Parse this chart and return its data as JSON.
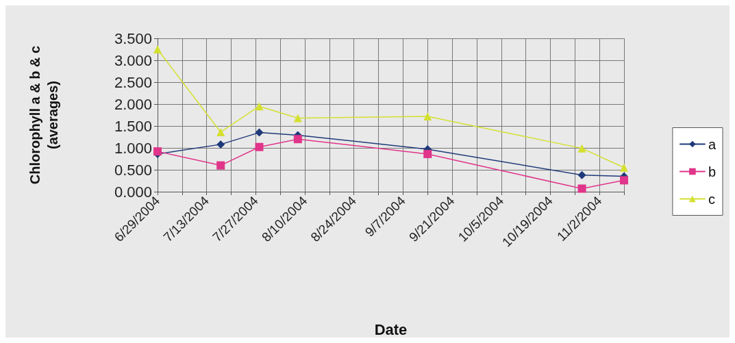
{
  "chart_data": {
    "type": "line",
    "xlabel": "Date",
    "ylabel": "Chlorophyll a & b & c\n(averages)",
    "x": [
      "2004-06-29",
      "2004-07-17",
      "2004-07-28",
      "2004-08-08",
      "2004-09-14",
      "2004-10-28",
      "2004-11-09"
    ],
    "series": [
      {
        "name": "a",
        "color": "#1f3a7a",
        "marker": "diamond",
        "values": [
          0.86,
          1.08,
          1.35,
          1.29,
          0.97,
          0.38,
          0.35
        ]
      },
      {
        "name": "b",
        "color": "#e0358a",
        "marker": "square",
        "values": [
          0.92,
          0.6,
          1.02,
          1.2,
          0.86,
          0.07,
          0.26
        ]
      },
      {
        "name": "c",
        "color": "#d4e030",
        "marker": "triangle",
        "values": [
          3.25,
          1.36,
          1.95,
          1.68,
          1.72,
          0.99,
          0.55
        ]
      }
    ],
    "xlim": [
      "2004-06-29",
      "2004-11-09"
    ],
    "xticks": [
      {
        "value": "2004-06-29",
        "label": "6/29/2004"
      },
      {
        "value": "2004-07-06",
        "label": null
      },
      {
        "value": "2004-07-13",
        "label": "7/13/2004"
      },
      {
        "value": "2004-07-20",
        "label": null
      },
      {
        "value": "2004-07-27",
        "label": "7/27/2004"
      },
      {
        "value": "2004-08-03",
        "label": null
      },
      {
        "value": "2004-08-10",
        "label": "8/10/2004"
      },
      {
        "value": "2004-08-17",
        "label": null
      },
      {
        "value": "2004-08-24",
        "label": "8/24/2004"
      },
      {
        "value": "2004-08-31",
        "label": null
      },
      {
        "value": "2004-09-07",
        "label": "9/7/2004"
      },
      {
        "value": "2004-09-14",
        "label": null
      },
      {
        "value": "2004-09-21",
        "label": "9/21/2004"
      },
      {
        "value": "2004-09-28",
        "label": null
      },
      {
        "value": "2004-10-05",
        "label": "10/5/2004"
      },
      {
        "value": "2004-10-12",
        "label": null
      },
      {
        "value": "2004-10-19",
        "label": "10/19/2004"
      },
      {
        "value": "2004-10-26",
        "label": null
      },
      {
        "value": "2004-11-02",
        "label": "11/2/2004"
      },
      {
        "value": "2004-11-09",
        "label": null
      }
    ],
    "ylim": [
      0,
      3.5
    ],
    "yticks": [
      {
        "value": 0,
        "label": "0.000"
      },
      {
        "value": 0.5,
        "label": "0.500"
      },
      {
        "value": 1,
        "label": "1.000"
      },
      {
        "value": 1.5,
        "label": "1.500"
      },
      {
        "value": 2,
        "label": "2.000"
      },
      {
        "value": 2.5,
        "label": "2.500"
      },
      {
        "value": 3,
        "label": "3.000"
      },
      {
        "value": 3.5,
        "label": "3.500"
      }
    ],
    "grid": true,
    "legend": "right",
    "line_style": "solid"
  }
}
